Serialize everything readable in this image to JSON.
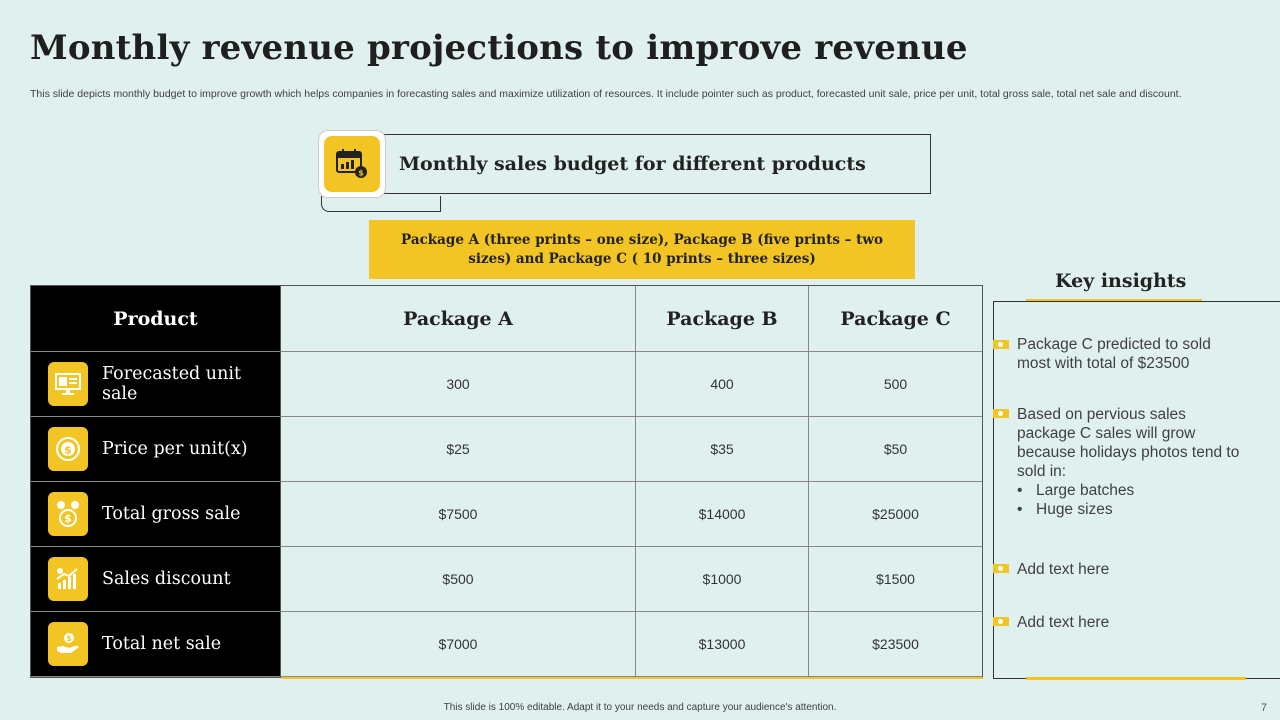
{
  "title": "Monthly revenue projections to improve revenue",
  "subtitle": "This slide depicts monthly budget to improve growth which helps companies in forecasting sales and maximize utilization of resources. It include pointer such as product, forecasted unit sale, price per unit, total gross sale, total net sale and discount.",
  "budget_card": {
    "label": "Monthly sales budget for different  products",
    "icon": "calendar-money-icon"
  },
  "package_banner": "Package A (three prints – one size), Package B (five prints – two sizes) and Package C ( 10 prints – three sizes)",
  "table": {
    "headers": [
      "Product",
      "Package  A",
      "Package  B",
      "Package  C"
    ],
    "rows": [
      {
        "label": "Forecasted unit sale",
        "icon": "monitor-chart-icon",
        "values": [
          "300",
          "400",
          "500"
        ]
      },
      {
        "label": "Price per unit(x)",
        "icon": "dollar-coin-icon",
        "values": [
          "$25",
          "$35",
          "$50"
        ]
      },
      {
        "label": "Total gross sale",
        "icon": "money-bag-icon",
        "values": [
          "$7500",
          "$14000",
          "$25000"
        ]
      },
      {
        "label": "Sales discount",
        "icon": "growth-chart-icon",
        "values": [
          "$500",
          "$1000",
          "$1500"
        ]
      },
      {
        "label": "Total net sale",
        "icon": "hand-money-icon",
        "values": [
          "$7000",
          "$13000",
          "$23500"
        ]
      }
    ]
  },
  "insights": {
    "title": "Key insights",
    "items": [
      {
        "text": "Package C predicted to sold most with total of $23500"
      },
      {
        "text": "Based on pervious sales package C sales will grow because holidays photos tend to sold in:",
        "sub": [
          "Large batches",
          "Huge sizes"
        ]
      },
      {
        "text": "Add text here"
      },
      {
        "text": "Add text here"
      }
    ]
  },
  "footer": "This slide is 100% editable.  Adapt it to your needs and capture your audience's attention.",
  "page_number": "7",
  "colors": {
    "accent": "#f2c524",
    "background": "#dff0ee",
    "dark": "#000000"
  }
}
